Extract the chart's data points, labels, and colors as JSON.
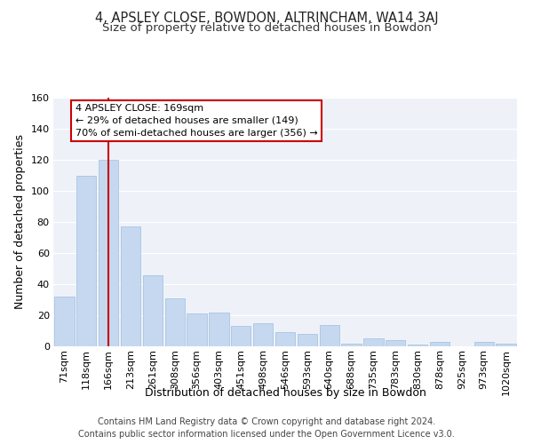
{
  "title": "4, APSLEY CLOSE, BOWDON, ALTRINCHAM, WA14 3AJ",
  "subtitle": "Size of property relative to detached houses in Bowdon",
  "xlabel": "Distribution of detached houses by size in Bowdon",
  "ylabel": "Number of detached properties",
  "categories": [
    "71sqm",
    "118sqm",
    "166sqm",
    "213sqm",
    "261sqm",
    "308sqm",
    "356sqm",
    "403sqm",
    "451sqm",
    "498sqm",
    "546sqm",
    "593sqm",
    "640sqm",
    "688sqm",
    "735sqm",
    "783sqm",
    "830sqm",
    "878sqm",
    "925sqm",
    "973sqm",
    "1020sqm"
  ],
  "values": [
    32,
    110,
    120,
    77,
    46,
    31,
    21,
    22,
    13,
    15,
    9,
    8,
    14,
    2,
    5,
    4,
    1,
    3,
    0,
    3,
    2
  ],
  "bar_color": "#c5d8f0",
  "bar_edge_color": "#a0bedd",
  "vline_x": 2,
  "vline_color": "#cc0000",
  "annotation_lines": [
    "4 APSLEY CLOSE: 169sqm",
    "← 29% of detached houses are smaller (149)",
    "70% of semi-detached houses are larger (356) →"
  ],
  "annotation_box_color": "#ffffff",
  "annotation_box_edge_color": "#cc0000",
  "ylim": [
    0,
    160
  ],
  "yticks": [
    0,
    20,
    40,
    60,
    80,
    100,
    120,
    140,
    160
  ],
  "bg_color": "#eef2f8",
  "grid_color": "#ffffff",
  "footer_line1": "Contains HM Land Registry data © Crown copyright and database right 2024.",
  "footer_line2": "Contains public sector information licensed under the Open Government Licence v3.0.",
  "title_fontsize": 10.5,
  "subtitle_fontsize": 9.5,
  "axis_label_fontsize": 9,
  "tick_fontsize": 8,
  "annotation_fontsize": 8,
  "footer_fontsize": 7
}
